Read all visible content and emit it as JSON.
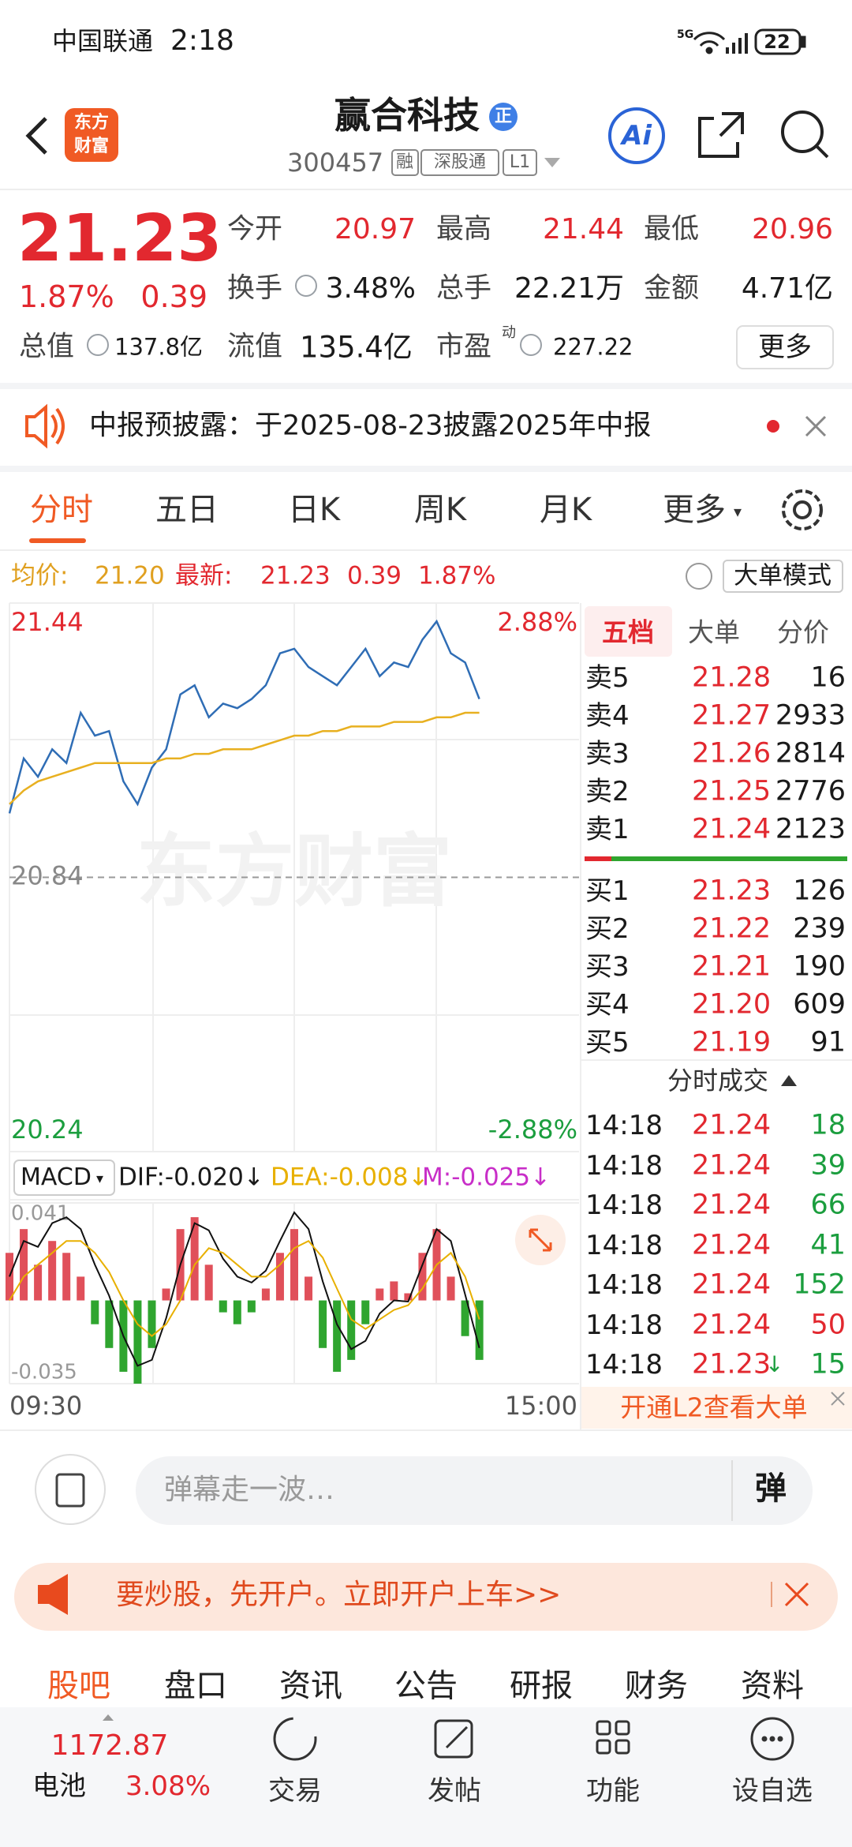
{
  "status_bar": {
    "carrier": "中国联通",
    "time": "2:18",
    "network": "5G",
    "battery": "22"
  },
  "header": {
    "logo": [
      "东方",
      "财富"
    ],
    "title": "赢合科技",
    "badge": "正",
    "code": "300457",
    "tags": [
      "融",
      "深股通",
      "L1"
    ],
    "ai": "Ai"
  },
  "quote": {
    "price": "21.23",
    "change_pct": "1.87%",
    "change": "0.39",
    "stats": [
      {
        "label": "今开",
        "value": "20.97"
      },
      {
        "label": "最高",
        "value": "21.44"
      },
      {
        "label": "最低",
        "value": "20.96"
      },
      {
        "label": "换手",
        "value": "3.48%"
      },
      {
        "label": "总手",
        "value": "22.21万"
      },
      {
        "label": "金额",
        "value": "4.71亿"
      },
      {
        "label": "总值",
        "value": "137.8亿"
      },
      {
        "label": "流值",
        "value": "135.4亿"
      },
      {
        "label": "市盈",
        "sup": "动",
        "value": "227.22"
      }
    ],
    "more": "更多"
  },
  "notice": {
    "text": "中报预披露：于2025-08-23披露2025年中报"
  },
  "tabs": [
    "分时",
    "五日",
    "日K",
    "周K",
    "月K",
    "更多"
  ],
  "summary": {
    "avg_label": "均价:",
    "avg": "21.20",
    "last_label": "最新:",
    "last": "21.23",
    "change": "0.39",
    "change_pct": "1.87%",
    "mode": "大单模式"
  },
  "intraday": {
    "watermark": "东方财富",
    "x_labels": [
      "09:30",
      "15:00"
    ],
    "ylim": [
      20.24,
      21.44
    ],
    "yticks": [
      21.44,
      20.84,
      20.24
    ],
    "y2lim": [
      -2.88,
      2.88
    ],
    "y2ticks": [
      {
        "value": 2.88,
        "label": "2.88%"
      },
      {
        "value": -2.88,
        "label": "-2.88%"
      }
    ],
    "series": [
      {
        "color": "#2f6db5",
        "values": [
          20.98,
          21.1,
          21.06,
          21.12,
          21.09,
          21.2,
          21.15,
          21.16,
          21.05,
          21.0,
          21.08,
          21.12,
          21.24,
          21.26,
          21.19,
          21.22,
          21.21,
          21.23,
          21.26,
          21.33,
          21.34,
          21.3,
          21.28,
          21.26,
          21.3,
          21.34,
          21.28,
          21.31,
          21.3,
          21.36,
          21.4,
          21.33,
          21.31,
          21.23,
          null,
          null,
          null,
          null,
          null,
          null,
          null
        ]
      },
      {
        "color": "#e8b020",
        "values": [
          21.0,
          21.03,
          21.05,
          21.06,
          21.07,
          21.08,
          21.09,
          21.09,
          21.09,
          21.09,
          21.09,
          21.1,
          21.1,
          21.11,
          21.11,
          21.12,
          21.12,
          21.12,
          21.13,
          21.14,
          21.15,
          21.15,
          21.16,
          21.16,
          21.17,
          21.17,
          21.17,
          21.18,
          21.18,
          21.18,
          21.19,
          21.19,
          21.2,
          21.2,
          null,
          null,
          null,
          null,
          null,
          null,
          null
        ]
      }
    ]
  },
  "macd": {
    "indicator": "MACD",
    "dif": "DIF:-0.020↓",
    "dea": "DEA:-0.008↓",
    "m": "M:-0.025↓",
    "ylim": [
      -0.035,
      0.041
    ],
    "yticks": [
      0.041,
      -0.035
    ],
    "series": [
      {
        "color": "#111111",
        "values": [
          0.01,
          0.025,
          0.0225,
          0.0325,
          0.035,
          0.03,
          0.015,
          0.002,
          -0.015,
          -0.0275,
          -0.025,
          -0.0075,
          0.015,
          0.0325,
          0.0295,
          0.0175,
          0.01,
          0.0075,
          0.0125,
          0.025,
          0.037,
          0.03,
          0.008,
          -0.01,
          -0.0205,
          -0.017,
          -0.0055,
          0,
          -0.0005,
          0.015,
          0.03,
          0.025,
          0.0025,
          -0.02,
          null,
          null,
          null,
          null,
          null,
          null,
          null
        ]
      },
      {
        "color": "#e8b000",
        "values": [
          0,
          0.01,
          0.015,
          0.02,
          0.025,
          0.025,
          0.02,
          0.012,
          0,
          -0.01,
          -0.015,
          -0.01,
          0,
          0.015,
          0.022,
          0.02,
          0.015,
          0.01,
          0.01,
          0.015,
          0.022,
          0.025,
          0.018,
          0.005,
          -0.008,
          -0.012,
          -0.008,
          -0.004,
          -0.002,
          0.005,
          0.015,
          0.02,
          0.01,
          -0.008,
          null,
          null,
          null,
          null,
          null,
          null,
          null
        ]
      }
    ],
    "bars": {
      "up_color": "#e0505a",
      "down_color": "#2fa52f",
      "values": [
        0.02,
        0.03,
        0.015,
        0.025,
        0.02,
        0.01,
        -0.01,
        -0.02,
        -0.03,
        -0.035,
        -0.02,
        0.005,
        0.03,
        0.035,
        0.015,
        -0.005,
        -0.01,
        -0.005,
        0.005,
        0.02,
        0.03,
        0.01,
        -0.02,
        -0.03,
        -0.025,
        -0.01,
        0.005,
        0.008,
        0.003,
        0.02,
        0.03,
        0.01,
        -0.015,
        -0.025,
        null,
        null,
        null,
        null,
        null,
        null,
        null
      ]
    }
  },
  "order_book": {
    "tabs": [
      "五档",
      "大单",
      "分价"
    ],
    "sell": [
      {
        "label": "卖5",
        "price": "21.28",
        "volume": "16"
      },
      {
        "label": "卖4",
        "price": "21.27",
        "volume": "2933"
      },
      {
        "label": "卖3",
        "price": "21.26",
        "volume": "2814"
      },
      {
        "label": "卖2",
        "price": "21.25",
        "volume": "2776"
      },
      {
        "label": "卖1",
        "price": "21.24",
        "volume": "2123"
      }
    ],
    "buy": [
      {
        "label": "买1",
        "price": "21.23",
        "volume": "126"
      },
      {
        "label": "买2",
        "price": "21.22",
        "volume": "239"
      },
      {
        "label": "买3",
        "price": "21.21",
        "volume": "190"
      },
      {
        "label": "买4",
        "price": "21.20",
        "volume": "609"
      },
      {
        "label": "买5",
        "price": "21.19",
        "volume": "91"
      }
    ]
  },
  "trades": {
    "title": "分时成交",
    "rows": [
      {
        "time": "14:18",
        "price": "21.24",
        "volume": "18",
        "color": "#1b9e3e"
      },
      {
        "time": "14:18",
        "price": "21.24",
        "volume": "39",
        "color": "#1b9e3e"
      },
      {
        "time": "14:18",
        "price": "21.24",
        "volume": "66",
        "color": "#1b9e3e"
      },
      {
        "time": "14:18",
        "price": "21.24",
        "volume": "41",
        "color": "#1b9e3e"
      },
      {
        "time": "14:18",
        "price": "21.24",
        "volume": "152",
        "color": "#1b9e3e"
      },
      {
        "time": "14:18",
        "price": "21.24",
        "volume": "50",
        "color": "#e2282f"
      },
      {
        "time": "14:18",
        "price": "21.23",
        "arrow": "↓",
        "volume": "15",
        "color": "#1b9e3e"
      }
    ],
    "l2": "开通L2查看大单"
  },
  "comment": {
    "placeholder": "弹幕走一波…",
    "button": "弹"
  },
  "ad": {
    "text": "要炒股，先开户。立即开户上车>>"
  },
  "section_tabs": [
    "股吧",
    "盘口",
    "资讯",
    "公告",
    "研报",
    "财务",
    "资料"
  ],
  "bottom_nav": {
    "index": "1172.87",
    "name": "电池",
    "change": "3.08%",
    "items": [
      "交易",
      "发帖",
      "功能",
      "设自选"
    ]
  }
}
